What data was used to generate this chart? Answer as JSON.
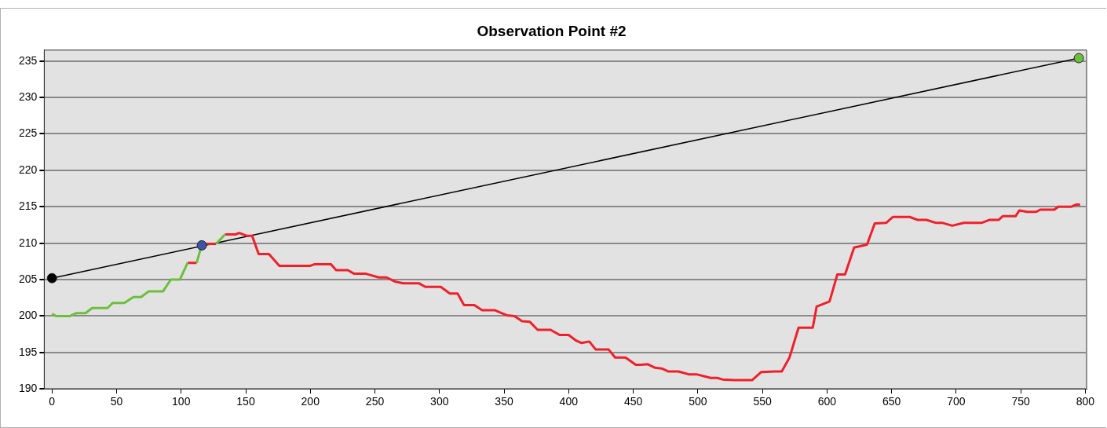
{
  "chart_data": {
    "type": "line",
    "title": "Observation Point #2",
    "xlim": [
      -6,
      801
    ],
    "ylim": [
      190,
      236.5
    ],
    "xticks": [
      0,
      50,
      100,
      150,
      200,
      250,
      300,
      350,
      400,
      450,
      500,
      550,
      600,
      650,
      700,
      750,
      800
    ],
    "yticks": [
      190,
      195,
      200,
      205,
      210,
      215,
      220,
      225,
      230,
      235
    ],
    "grid": "y",
    "legend": false,
    "line_style": "solid",
    "series": [
      {
        "color": "#6cbf3c",
        "x": [
          0,
          3,
          14,
          19,
          26,
          31,
          43,
          47,
          56,
          63,
          69,
          75,
          86,
          92,
          99,
          105,
          106,
          112,
          116,
          118,
          119,
          127,
          134
        ],
        "values": [
          200.3,
          200,
          200,
          200.4,
          200.4,
          201.1,
          201.1,
          201.8,
          201.8,
          202.6,
          202.6,
          203.4,
          203.4,
          205,
          205,
          207.3,
          null,
          207.3,
          209.8,
          209.9,
          null,
          209.9,
          211.2
        ]
      },
      {
        "color": "#f0202a",
        "x": [
          105,
          112,
          113,
          116,
          119,
          127,
          128,
          134,
          142,
          145,
          151,
          155,
          160,
          168,
          176,
          200,
          203,
          216,
          220,
          229,
          234,
          243,
          253,
          259,
          266,
          272,
          284,
          289,
          301,
          308,
          314,
          319,
          327,
          333,
          343,
          352,
          358,
          364,
          370,
          376,
          386,
          393,
          400,
          406,
          410,
          416,
          421,
          431,
          436,
          444,
          452,
          456,
          461,
          467,
          472,
          477,
          485,
          493,
          499,
          510,
          515,
          519,
          528,
          542,
          549,
          560,
          565,
          571,
          578,
          589,
          592,
          602,
          608,
          614,
          621,
          631,
          637,
          646,
          651,
          664,
          670,
          677,
          684,
          689,
          697,
          706,
          720,
          726,
          733,
          736,
          746,
          749,
          755,
          762,
          765,
          776,
          779,
          789,
          793,
          796
        ],
        "values": [
          207.3,
          207.3,
          null,
          209.8,
          209.9,
          209.9,
          null,
          211.2,
          211.2,
          211.4,
          211,
          211,
          208.5,
          208.5,
          206.9,
          206.9,
          207.1,
          207.1,
          206.3,
          206.3,
          205.8,
          205.8,
          205.3,
          205.3,
          204.7,
          204.5,
          204.5,
          204,
          204,
          203.1,
          203.1,
          201.5,
          201.5,
          200.8,
          200.8,
          200.1,
          200,
          199.3,
          199.2,
          198.1,
          198.1,
          197.4,
          197.4,
          196.6,
          196.3,
          196.5,
          195.4,
          195.4,
          194.3,
          194.3,
          193.3,
          193.3,
          193.4,
          192.9,
          192.8,
          192.4,
          192.4,
          192,
          192,
          191.5,
          191.5,
          191.3,
          191.2,
          191.2,
          192.3,
          192.4,
          192.4,
          194.3,
          198.4,
          198.4,
          201.3,
          202,
          205.7,
          205.7,
          209.4,
          209.8,
          212.7,
          212.8,
          213.6,
          213.6,
          213.2,
          213.2,
          212.8,
          212.8,
          212.4,
          212.8,
          212.8,
          213.2,
          213.2,
          213.7,
          213.7,
          214.5,
          214.3,
          214.3,
          214.6,
          214.6,
          215,
          215,
          215.3,
          215.3
        ]
      },
      {
        "color": "#000000",
        "x": [
          0,
          795
        ],
        "values": [
          205.2,
          235.4
        ]
      },
      {
        "type": "scatter",
        "marker": "circle",
        "x": [
          0,
          116,
          795
        ],
        "values": [
          205.2,
          209.7,
          235.4
        ],
        "colors": [
          "#000000",
          "#3a55a4",
          "#6cbf3c"
        ]
      }
    ]
  }
}
